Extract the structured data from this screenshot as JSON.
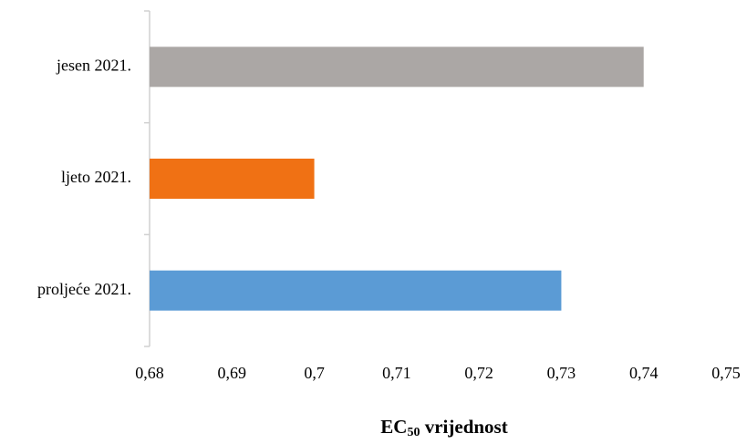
{
  "chart_data": {
    "type": "barh",
    "categories": [
      "proljeće 2021.",
      "ljeto 2021.",
      "jesen 2021."
    ],
    "values": [
      0.73,
      0.7,
      0.74
    ],
    "colors": [
      "#5b9bd5",
      "#f07114",
      "#aba7a5"
    ],
    "xlabel": [
      "EC",
      "50",
      " vrijednost"
    ],
    "xlim": [
      0.68,
      0.75
    ],
    "xticks": [
      {
        "value": 0.68,
        "label": "0,68"
      },
      {
        "value": 0.69,
        "label": "0,69"
      },
      {
        "value": 0.7,
        "label": "0,7"
      },
      {
        "value": 0.71,
        "label": "0,71"
      },
      {
        "value": 0.72,
        "label": "0,72"
      },
      {
        "value": 0.73,
        "label": "0,73"
      },
      {
        "value": 0.74,
        "label": "0,74"
      },
      {
        "value": 0.75,
        "label": "0,75"
      }
    ],
    "grid": false
  }
}
